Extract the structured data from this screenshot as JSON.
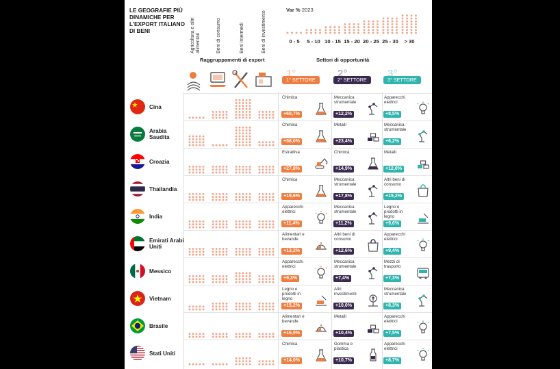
{
  "title": "LE GEOGRAFIE PIÙ DINAMICHE PER L'EXPORT ITALIANO DI BENI",
  "group_headers": [
    "Agricoltura e altri alimentari",
    "Beni di consumo",
    "Beni intermedi",
    "Beni di investimento"
  ],
  "var_label_prefix": "Var %",
  "var_label_year": "2023",
  "legend_bins": [
    "0 - 5",
    "5 - 10",
    "10 - 15",
    "15 - 20",
    "20 - 25",
    "25 - 30",
    "> 30"
  ],
  "groups_title": "Raggruppamenti di export",
  "opp_title": "Settori di opportunità",
  "sector_badges": [
    {
      "label": "1° SETTORE",
      "num": "1°",
      "color": "#ef7d3f"
    },
    {
      "label": "2° SETTORE",
      "num": "2°",
      "color": "#3b2a4f"
    },
    {
      "label": "3° SETTORE",
      "num": "3°",
      "color": "#2fb5ad"
    }
  ],
  "colors": {
    "dot": "#f2a489",
    "orange": "#ef7d3f",
    "purple": "#3b2a4f",
    "teal": "#2fb5ad"
  },
  "chart_data": {
    "type": "table",
    "columns": [
      "Agricoltura e altri alimentari",
      "Beni di consumo",
      "Beni intermedi",
      "Beni di investimento"
    ],
    "countries": [
      {
        "name": "Cina",
        "flag": "cn",
        "group_levels": [
          1,
          3,
          7,
          3
        ],
        "sectors": [
          {
            "label": "Chimica",
            "value": "+60,7%",
            "icon": "flask-icon"
          },
          {
            "label": "Meccanica strumentale",
            "value": "+12,2%",
            "icon": "robot-arm-icon"
          },
          {
            "label": "Apparecchi elettrici",
            "value": "+8,5%",
            "icon": "lightbulb-icon"
          }
        ]
      },
      {
        "name": "Arabia Saudita",
        "flag": "sa",
        "group_levels": [
          4,
          1,
          7,
          2
        ],
        "sectors": [
          {
            "label": "Chimica",
            "value": "+58,0%",
            "icon": "flask-icon"
          },
          {
            "label": "Metalli",
            "value": "+23,4%",
            "icon": "metal-bars-icon"
          },
          {
            "label": "Meccanica strumentale",
            "value": "+6,2%",
            "icon": "robot-arm-icon"
          }
        ]
      },
      {
        "name": "Croazia",
        "flag": "hr",
        "group_levels": [
          3,
          3,
          3,
          3
        ],
        "sectors": [
          {
            "label": "Estrattiva",
            "value": "+27,8%",
            "icon": "excavator-icon"
          },
          {
            "label": "Chimica",
            "value": "+14,9%",
            "icon": "flask-icon"
          },
          {
            "label": "Metalli",
            "value": "+12,0%",
            "icon": "metal-bars-icon"
          }
        ]
      },
      {
        "name": "Thailandia",
        "flag": "th",
        "group_levels": [
          3,
          3,
          3,
          3
        ],
        "sectors": [
          {
            "label": "Chimica",
            "value": "+19,6%",
            "icon": "flask-icon"
          },
          {
            "label": "Meccanica strumentale",
            "value": "+17,8%",
            "icon": "robot-arm-icon"
          },
          {
            "label": "Altri beni di consumo",
            "value": "+15,2%",
            "icon": "shopping-bag-icon"
          }
        ]
      },
      {
        "name": "India",
        "flag": "in",
        "group_levels": [
          3,
          3,
          3,
          3
        ],
        "sectors": [
          {
            "label": "Apparecchi elettrici",
            "value": "+11,4%",
            "icon": "lightbulb-icon"
          },
          {
            "label": "Meccanica strumentale",
            "value": "+11,2%",
            "icon": "robot-arm-icon"
          },
          {
            "label": "Legno e prodotti in legno",
            "value": "+9,6%",
            "icon": "saw-icon"
          }
        ]
      },
      {
        "name": "Emirati Arabi Uniti",
        "flag": "ae",
        "group_levels": [
          3,
          3,
          3,
          3
        ],
        "sectors": [
          {
            "label": "Alimentari e bevande",
            "value": "+13,2%",
            "icon": "cloche-icon"
          },
          {
            "label": "Altri beni di consumo",
            "value": "+12,6%",
            "icon": "shopping-bag-icon"
          },
          {
            "label": "Apparecchi elettrici",
            "value": "+9,4%",
            "icon": "lightbulb-icon"
          }
        ]
      },
      {
        "name": "Messico",
        "flag": "mx",
        "group_levels": [
          3,
          3,
          4,
          3
        ],
        "sectors": [
          {
            "label": "Apparecchi elettrici",
            "value": "+9,3%",
            "icon": "lightbulb-icon"
          },
          {
            "label": "Meccanica strumentale",
            "value": "+7,4%",
            "icon": "robot-arm-icon"
          },
          {
            "label": "Mezzi di trasporto",
            "value": "+7,3%",
            "icon": "bus-icon"
          }
        ]
      },
      {
        "name": "Vietnam",
        "flag": "vn",
        "group_levels": [
          2,
          3,
          3,
          3
        ],
        "sectors": [
          {
            "label": "Legno e prodotti in legno",
            "value": "+15,2%",
            "icon": "saw-icon"
          },
          {
            "label": "Altri investimenti",
            "value": "+10,0%",
            "icon": "money-plant-icon"
          },
          {
            "label": "Meccanica strumentale",
            "value": "+8,3%",
            "icon": "robot-arm-icon"
          }
        ]
      },
      {
        "name": "Brasile",
        "flag": "br",
        "group_levels": [
          2,
          2,
          2,
          2
        ],
        "sectors": [
          {
            "label": "Alimentari e bevande",
            "value": "+16,9%",
            "icon": "cloche-icon"
          },
          {
            "label": "Metalli",
            "value": "+10,4%",
            "icon": "metal-bars-icon"
          },
          {
            "label": "Apparecchi elettrici",
            "value": "+7,5%",
            "icon": "lightbulb-icon"
          }
        ]
      },
      {
        "name": "Stati Uniti",
        "flag": "us",
        "group_levels": [
          1,
          1,
          3,
          2
        ],
        "sectors": [
          {
            "label": "Chimica",
            "value": "+14,0%",
            "icon": "flask-icon"
          },
          {
            "label": "Gomma e plastica",
            "value": "+10,7%",
            "icon": "bottle-icon"
          },
          {
            "label": "Apparecchi elettrici",
            "value": "+8,7%",
            "icon": "lightbulb-icon"
          }
        ]
      }
    ]
  }
}
